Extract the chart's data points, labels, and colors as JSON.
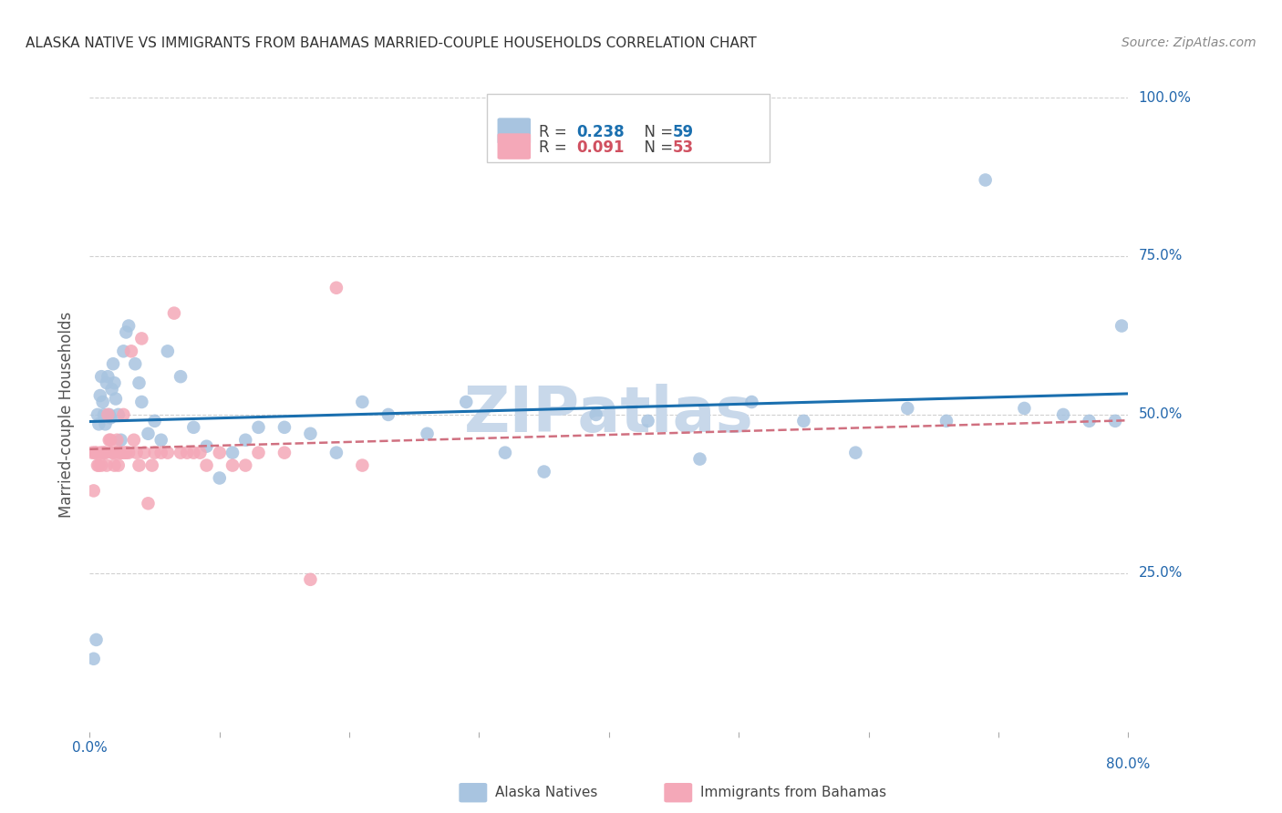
{
  "title": "ALASKA NATIVE VS IMMIGRANTS FROM BAHAMAS MARRIED-COUPLE HOUSEHOLDS CORRELATION CHART",
  "source": "Source: ZipAtlas.com",
  "ylabel": "Married-couple Households",
  "blue_scatter_color": "#a8c4e0",
  "pink_scatter_color": "#f4a8b8",
  "blue_line_color": "#1a6faf",
  "pink_line_color": "#d07080",
  "grid_color": "#d0d0d0",
  "watermark": "ZIPatlas",
  "watermark_color": "#c8d8ea",
  "blue_x": [
    0.003,
    0.005,
    0.006,
    0.007,
    0.008,
    0.009,
    0.01,
    0.011,
    0.012,
    0.013,
    0.014,
    0.015,
    0.016,
    0.017,
    0.018,
    0.019,
    0.02,
    0.022,
    0.024,
    0.026,
    0.028,
    0.03,
    0.035,
    0.038,
    0.04,
    0.045,
    0.05,
    0.055,
    0.06,
    0.07,
    0.08,
    0.09,
    0.1,
    0.11,
    0.12,
    0.13,
    0.15,
    0.17,
    0.19,
    0.21,
    0.23,
    0.26,
    0.29,
    0.32,
    0.35,
    0.39,
    0.43,
    0.47,
    0.51,
    0.55,
    0.59,
    0.63,
    0.66,
    0.69,
    0.72,
    0.75,
    0.77,
    0.79,
    0.795
  ],
  "blue_y": [
    0.115,
    0.145,
    0.5,
    0.485,
    0.53,
    0.56,
    0.52,
    0.5,
    0.485,
    0.55,
    0.56,
    0.5,
    0.495,
    0.54,
    0.58,
    0.55,
    0.525,
    0.5,
    0.46,
    0.6,
    0.63,
    0.64,
    0.58,
    0.55,
    0.52,
    0.47,
    0.49,
    0.46,
    0.6,
    0.56,
    0.48,
    0.45,
    0.4,
    0.44,
    0.46,
    0.48,
    0.48,
    0.47,
    0.44,
    0.52,
    0.5,
    0.47,
    0.52,
    0.44,
    0.41,
    0.5,
    0.49,
    0.43,
    0.52,
    0.49,
    0.44,
    0.51,
    0.49,
    0.87,
    0.51,
    0.5,
    0.49,
    0.49,
    0.64
  ],
  "pink_x": [
    0.002,
    0.003,
    0.004,
    0.005,
    0.006,
    0.007,
    0.008,
    0.009,
    0.01,
    0.011,
    0.012,
    0.013,
    0.014,
    0.015,
    0.016,
    0.017,
    0.018,
    0.019,
    0.02,
    0.021,
    0.022,
    0.023,
    0.024,
    0.025,
    0.026,
    0.027,
    0.028,
    0.03,
    0.032,
    0.034,
    0.036,
    0.038,
    0.04,
    0.042,
    0.045,
    0.048,
    0.05,
    0.055,
    0.06,
    0.065,
    0.07,
    0.075,
    0.08,
    0.085,
    0.09,
    0.1,
    0.11,
    0.12,
    0.13,
    0.15,
    0.17,
    0.19,
    0.21
  ],
  "pink_y": [
    0.44,
    0.38,
    0.44,
    0.44,
    0.42,
    0.42,
    0.44,
    0.42,
    0.44,
    0.44,
    0.44,
    0.42,
    0.5,
    0.46,
    0.46,
    0.44,
    0.44,
    0.42,
    0.44,
    0.46,
    0.42,
    0.44,
    0.44,
    0.44,
    0.5,
    0.44,
    0.44,
    0.44,
    0.6,
    0.46,
    0.44,
    0.42,
    0.62,
    0.44,
    0.36,
    0.42,
    0.44,
    0.44,
    0.44,
    0.66,
    0.44,
    0.44,
    0.44,
    0.44,
    0.42,
    0.44,
    0.42,
    0.42,
    0.44,
    0.44,
    0.24,
    0.7,
    0.42
  ]
}
